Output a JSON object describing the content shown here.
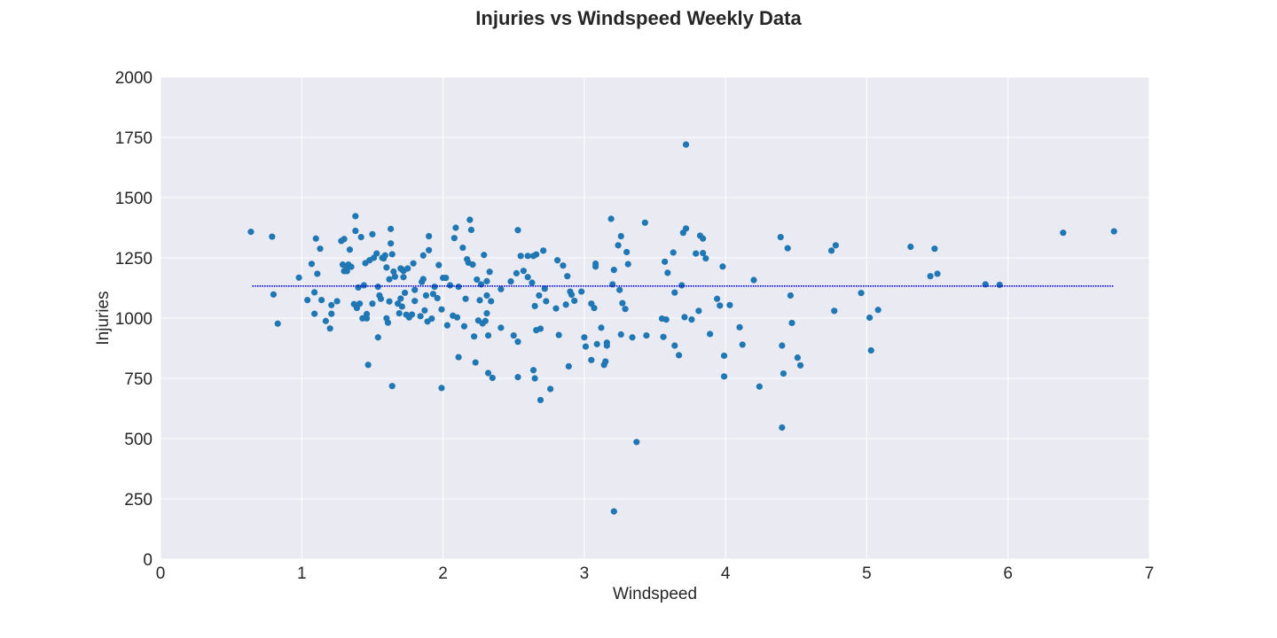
{
  "chart_data": {
    "type": "scatter",
    "title": "Injuries vs Windspeed Weekly Data",
    "xlabel": "Windspeed",
    "ylabel": "Injuries",
    "xlim": [
      0,
      7
    ],
    "ylim": [
      0,
      2000
    ],
    "xticks": [
      0,
      1,
      2,
      3,
      4,
      5,
      6,
      7
    ],
    "yticks": [
      0,
      250,
      500,
      750,
      1000,
      1250,
      1500,
      1750,
      2000
    ],
    "grid": true,
    "colors": {
      "background": "#eaeaf2",
      "grid": "#ffffff",
      "points": "#1f77b4",
      "fit_line": "#0000cd"
    },
    "fit_line": {
      "x": [
        0.65,
        6.75
      ],
      "y": [
        1133,
        1133
      ],
      "style": "dotted"
    },
    "points": [
      [
        0.64,
        1358
      ],
      [
        0.79,
        1338
      ],
      [
        0.8,
        1098
      ],
      [
        0.83,
        977
      ],
      [
        0.98,
        1168
      ],
      [
        1.04,
        1075
      ],
      [
        1.07,
        1225
      ],
      [
        1.09,
        1018
      ],
      [
        1.09,
        1107
      ],
      [
        1.1,
        1330
      ],
      [
        1.11,
        1184
      ],
      [
        1.13,
        1288
      ],
      [
        1.14,
        1075
      ],
      [
        1.17,
        988
      ],
      [
        1.2,
        957
      ],
      [
        1.21,
        1054
      ],
      [
        1.21,
        1018
      ],
      [
        1.25,
        1070
      ],
      [
        1.28,
        1320
      ],
      [
        1.29,
        1222
      ],
      [
        1.3,
        1195
      ],
      [
        1.3,
        1328
      ],
      [
        1.31,
        1213
      ],
      [
        1.32,
        1195
      ],
      [
        1.33,
        1222
      ],
      [
        1.34,
        1284
      ],
      [
        1.35,
        1213
      ],
      [
        1.37,
        1058
      ],
      [
        1.38,
        1362
      ],
      [
        1.38,
        1423
      ],
      [
        1.39,
        1042
      ],
      [
        1.4,
        1127
      ],
      [
        1.41,
        1060
      ],
      [
        1.42,
        1336
      ],
      [
        1.43,
        999
      ],
      [
        1.44,
        1136
      ],
      [
        1.45,
        1228
      ],
      [
        1.46,
        1017
      ],
      [
        1.46,
        999
      ],
      [
        1.47,
        806
      ],
      [
        1.48,
        1240
      ],
      [
        1.5,
        1060
      ],
      [
        1.5,
        1348
      ],
      [
        1.51,
        1250
      ],
      [
        1.53,
        1268
      ],
      [
        1.54,
        920
      ],
      [
        1.54,
        1130
      ],
      [
        1.55,
        1094
      ],
      [
        1.56,
        1080
      ],
      [
        1.57,
        1250
      ],
      [
        1.58,
        1248
      ],
      [
        1.59,
        1260
      ],
      [
        1.6,
        1210
      ],
      [
        1.6,
        999
      ],
      [
        1.61,
        981
      ],
      [
        1.62,
        1069
      ],
      [
        1.62,
        1161
      ],
      [
        1.63,
        1370
      ],
      [
        1.63,
        1310
      ],
      [
        1.64,
        1265
      ],
      [
        1.64,
        718
      ],
      [
        1.65,
        1193
      ],
      [
        1.66,
        1172
      ],
      [
        1.68,
        1060
      ],
      [
        1.69,
        1020
      ],
      [
        1.7,
        1206
      ],
      [
        1.7,
        1081
      ],
      [
        1.71,
        1202
      ],
      [
        1.71,
        1048
      ],
      [
        1.72,
        1196
      ],
      [
        1.72,
        1170
      ],
      [
        1.73,
        1105
      ],
      [
        1.74,
        1014
      ],
      [
        1.75,
        1206
      ],
      [
        1.76,
        1003
      ],
      [
        1.78,
        1015
      ],
      [
        1.79,
        1227
      ],
      [
        1.8,
        1117
      ],
      [
        1.8,
        1071
      ],
      [
        1.84,
        1008
      ],
      [
        1.85,
        1150
      ],
      [
        1.86,
        1260
      ],
      [
        1.86,
        1162
      ],
      [
        1.87,
        1032
      ],
      [
        1.88,
        1094
      ],
      [
        1.89,
        986
      ],
      [
        1.9,
        1340
      ],
      [
        1.9,
        1282
      ],
      [
        1.92,
        998
      ],
      [
        1.93,
        1100
      ],
      [
        1.94,
        1130
      ],
      [
        1.96,
        1083
      ],
      [
        1.97,
        1220
      ],
      [
        1.99,
        1036
      ],
      [
        1.99,
        710
      ],
      [
        2.0,
        1167
      ],
      [
        2.02,
        1167
      ],
      [
        2.03,
        970
      ],
      [
        2.05,
        1136
      ],
      [
        2.07,
        1010
      ],
      [
        2.08,
        1332
      ],
      [
        2.09,
        1375
      ],
      [
        2.1,
        1003
      ],
      [
        2.11,
        838
      ],
      [
        2.11,
        1130
      ],
      [
        2.14,
        1292
      ],
      [
        2.15,
        966
      ],
      [
        2.16,
        1080
      ],
      [
        2.17,
        1244
      ],
      [
        2.18,
        1230
      ],
      [
        2.19,
        1408
      ],
      [
        2.2,
        1366
      ],
      [
        2.21,
        1222
      ],
      [
        2.22,
        924
      ],
      [
        2.23,
        816
      ],
      [
        2.24,
        1160
      ],
      [
        2.25,
        990
      ],
      [
        2.26,
        1074
      ],
      [
        2.27,
        1140
      ],
      [
        2.28,
        978
      ],
      [
        2.29,
        1262
      ],
      [
        2.3,
        988
      ],
      [
        2.31,
        1094
      ],
      [
        2.31,
        1020
      ],
      [
        2.31,
        1153
      ],
      [
        2.32,
        928
      ],
      [
        2.32,
        772
      ],
      [
        2.33,
        1192
      ],
      [
        2.34,
        1070
      ],
      [
        2.35,
        752
      ],
      [
        2.41,
        1120
      ],
      [
        2.41,
        960
      ],
      [
        2.48,
        1152
      ],
      [
        2.5,
        928
      ],
      [
        2.52,
        1186
      ],
      [
        2.53,
        1365
      ],
      [
        2.53,
        902
      ],
      [
        2.53,
        755
      ],
      [
        2.55,
        1258
      ],
      [
        2.57,
        1196
      ],
      [
        2.6,
        1170
      ],
      [
        2.6,
        1258
      ],
      [
        2.63,
        1147
      ],
      [
        2.64,
        784
      ],
      [
        2.64,
        1258
      ],
      [
        2.65,
        1050
      ],
      [
        2.65,
        750
      ],
      [
        2.66,
        950
      ],
      [
        2.66,
        1264
      ],
      [
        2.68,
        1094
      ],
      [
        2.69,
        956
      ],
      [
        2.69,
        660
      ],
      [
        2.71,
        1280
      ],
      [
        2.72,
        1122
      ],
      [
        2.73,
        1070
      ],
      [
        2.76,
        706
      ],
      [
        2.8,
        1040
      ],
      [
        2.81,
        1240
      ],
      [
        2.82,
        930
      ],
      [
        2.85,
        1218
      ],
      [
        2.87,
        1056
      ],
      [
        2.88,
        1174
      ],
      [
        2.89,
        800
      ],
      [
        2.9,
        1110
      ],
      [
        2.91,
        1097
      ],
      [
        2.93,
        1072
      ],
      [
        2.98,
        1110
      ],
      [
        3.0,
        920
      ],
      [
        3.01,
        882
      ],
      [
        3.05,
        1060
      ],
      [
        3.05,
        826
      ],
      [
        3.07,
        1042
      ],
      [
        3.08,
        1214
      ],
      [
        3.08,
        1226
      ],
      [
        3.09,
        892
      ],
      [
        3.12,
        960
      ],
      [
        3.14,
        806
      ],
      [
        3.15,
        820
      ],
      [
        3.16,
        886
      ],
      [
        3.16,
        898
      ],
      [
        3.19,
        1412
      ],
      [
        3.2,
        1140
      ],
      [
        3.21,
        198
      ],
      [
        3.21,
        1200
      ],
      [
        3.24,
        1302
      ],
      [
        3.25,
        1117
      ],
      [
        3.26,
        932
      ],
      [
        3.26,
        1340
      ],
      [
        3.27,
        1062
      ],
      [
        3.29,
        1038
      ],
      [
        3.3,
        1274
      ],
      [
        3.31,
        1224
      ],
      [
        3.34,
        920
      ],
      [
        3.37,
        486
      ],
      [
        3.43,
        1396
      ],
      [
        3.44,
        928
      ],
      [
        3.55,
        998
      ],
      [
        3.56,
        922
      ],
      [
        3.57,
        1234
      ],
      [
        3.58,
        994
      ],
      [
        3.59,
        1188
      ],
      [
        3.63,
        1272
      ],
      [
        3.64,
        1106
      ],
      [
        3.64,
        886
      ],
      [
        3.67,
        846
      ],
      [
        3.69,
        1136
      ],
      [
        3.7,
        1354
      ],
      [
        3.71,
        1004
      ],
      [
        3.72,
        1372
      ],
      [
        3.72,
        1720
      ],
      [
        3.76,
        994
      ],
      [
        3.79,
        1268
      ],
      [
        3.81,
        1030
      ],
      [
        3.82,
        1342
      ],
      [
        3.84,
        1270
      ],
      [
        3.84,
        1330
      ],
      [
        3.86,
        1248
      ],
      [
        3.89,
        934
      ],
      [
        3.94,
        1080
      ],
      [
        3.96,
        1052
      ],
      [
        3.98,
        1214
      ],
      [
        3.99,
        844
      ],
      [
        3.99,
        758
      ],
      [
        4.03,
        1054
      ],
      [
        4.1,
        962
      ],
      [
        4.12,
        890
      ],
      [
        4.2,
        1158
      ],
      [
        4.24,
        716
      ],
      [
        4.39,
        1336
      ],
      [
        4.4,
        886
      ],
      [
        4.4,
        546
      ],
      [
        4.41,
        770
      ],
      [
        4.44,
        1290
      ],
      [
        4.46,
        1094
      ],
      [
        4.47,
        980
      ],
      [
        4.51,
        836
      ],
      [
        4.53,
        804
      ],
      [
        4.75,
        1280
      ],
      [
        4.77,
        1030
      ],
      [
        4.78,
        1302
      ],
      [
        4.96,
        1104
      ],
      [
        5.02,
        1002
      ],
      [
        5.03,
        866
      ],
      [
        5.08,
        1034
      ],
      [
        5.31,
        1296
      ],
      [
        5.45,
        1174
      ],
      [
        5.48,
        1288
      ],
      [
        5.5,
        1184
      ],
      [
        5.84,
        1140
      ],
      [
        5.94,
        1138
      ],
      [
        6.39,
        1354
      ],
      [
        6.75,
        1360
      ]
    ]
  }
}
